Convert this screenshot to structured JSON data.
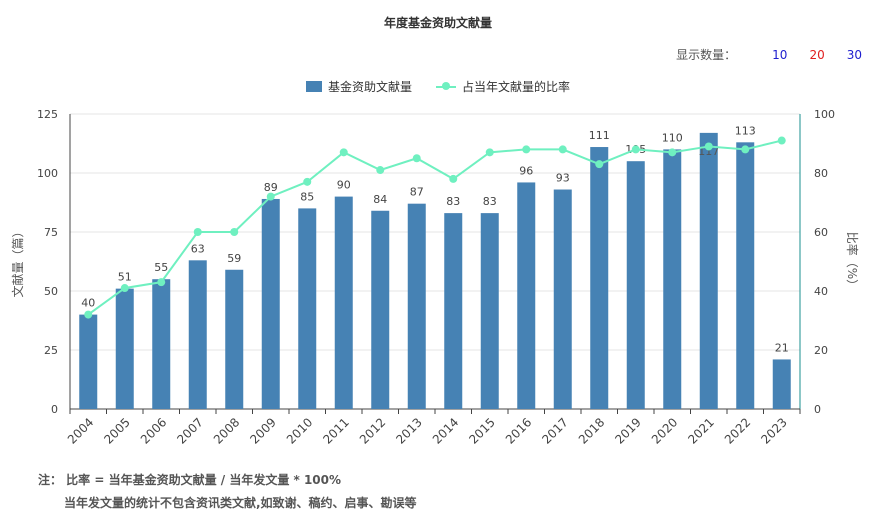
{
  "title": "年度基金资助文献量",
  "display_count": {
    "label": "显示数量：",
    "options": [
      {
        "value": "10",
        "color": "#1e1ecf"
      },
      {
        "value": "20",
        "color": "#e01e1e"
      },
      {
        "value": "30",
        "color": "#1e1ecf"
      }
    ]
  },
  "notes": {
    "line1": "注： 比率 = 当年基金资助文献量 / 当年发文量 * 100%",
    "line2": "当年发文量的统计不包含资讯类文献,如致谢、稿约、启事、勘误等"
  },
  "colors": {
    "bar": "#4682b4",
    "line": "#6ff0c0"
  },
  "chart_data": {
    "type": "bar",
    "categories": [
      "2004",
      "2005",
      "2006",
      "2007",
      "2008",
      "2009",
      "2010",
      "2011",
      "2012",
      "2013",
      "2014",
      "2015",
      "2016",
      "2017",
      "2018",
      "2019",
      "2020",
      "2021",
      "2022",
      "2023"
    ],
    "series": [
      {
        "name": "基金资助文献量",
        "type": "bar",
        "axis": "left",
        "values": [
          40,
          51,
          55,
          63,
          59,
          89,
          85,
          90,
          84,
          87,
          83,
          83,
          96,
          93,
          111,
          105,
          110,
          117,
          113,
          21
        ]
      },
      {
        "name": "占当年文献量的比率",
        "type": "line",
        "axis": "right",
        "values": [
          32,
          41,
          43,
          60,
          60,
          72,
          77,
          87,
          81,
          85,
          78,
          87,
          88,
          88,
          83,
          88,
          87,
          89,
          88,
          91
        ]
      }
    ],
    "ylabel_left": "文献量（篇）",
    "ylabel_right": "比率（%）",
    "ylim_left": [
      0,
      125
    ],
    "yticks_left": [
      "0",
      "25",
      "50",
      "75",
      "100",
      "125"
    ],
    "ylim_right": [
      0,
      100
    ],
    "yticks_right": [
      "0",
      "20",
      "40",
      "60",
      "80",
      "100"
    ],
    "grid": true,
    "legend_position": "top-center"
  }
}
